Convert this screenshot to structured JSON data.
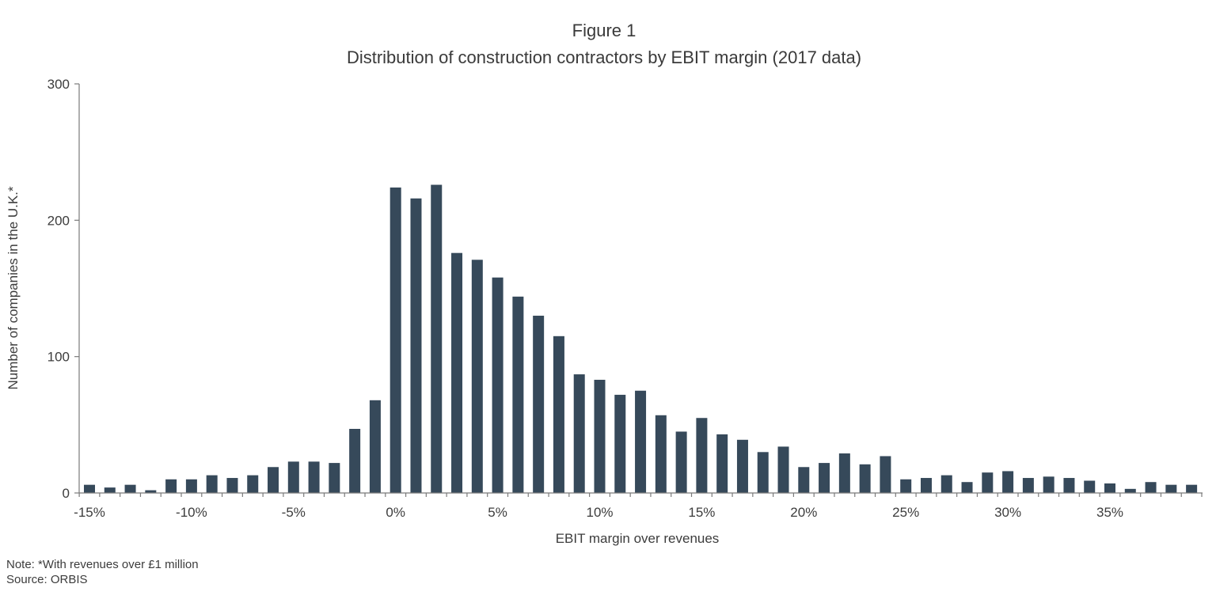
{
  "figure": {
    "title": "Figure 1",
    "subtitle": "Distribution of construction contractors by EBIT margin (2017 data)"
  },
  "notes": {
    "note": "Note: *With revenues over £1 million",
    "source": "Source: ORBIS"
  },
  "chart_data": {
    "type": "bar",
    "title": "Distribution of construction contractors by EBIT margin (2017 data)",
    "xlabel": "EBIT margin over revenues",
    "ylabel": "Number of companies in the U.K.*",
    "ylim": [
      0,
      300
    ],
    "y_ticks": [
      0,
      100,
      200,
      300
    ],
    "x_tick_labels": [
      {
        "x": -15,
        "label": "-15%"
      },
      {
        "x": -10,
        "label": "-10%"
      },
      {
        "x": -5,
        "label": "-5%"
      },
      {
        "x": 0,
        "label": "0%"
      },
      {
        "x": 5,
        "label": "5%"
      },
      {
        "x": 10,
        "label": "10%"
      },
      {
        "x": 15,
        "label": "15%"
      },
      {
        "x": 20,
        "label": "20%"
      },
      {
        "x": 25,
        "label": "25%"
      },
      {
        "x": 30,
        "label": "30%"
      },
      {
        "x": 35,
        "label": "35%"
      }
    ],
    "categories": [
      -15,
      -14,
      -13,
      -12,
      -11,
      -10,
      -9,
      -8,
      -7,
      -6,
      -5,
      -4,
      -3,
      -2,
      -1,
      0,
      1,
      2,
      3,
      4,
      5,
      6,
      7,
      8,
      9,
      10,
      11,
      12,
      13,
      14,
      15,
      16,
      17,
      18,
      19,
      20,
      21,
      22,
      23,
      24,
      25,
      26,
      27,
      28,
      29,
      30,
      31,
      32,
      33,
      34,
      35,
      36,
      37,
      38,
      39
    ],
    "values": [
      6,
      4,
      6,
      2,
      10,
      10,
      13,
      11,
      13,
      19,
      23,
      23,
      22,
      47,
      68,
      224,
      216,
      226,
      176,
      171,
      158,
      144,
      130,
      115,
      87,
      83,
      72,
      75,
      57,
      45,
      55,
      43,
      39,
      30,
      34,
      19,
      22,
      29,
      21,
      27,
      10,
      11,
      13,
      8,
      15,
      16,
      11,
      12,
      11,
      9,
      7,
      3,
      8,
      6,
      6
    ],
    "bar_color": "#36495a",
    "axis_color": "#7a7a7a",
    "grid": false,
    "legend": "none"
  }
}
